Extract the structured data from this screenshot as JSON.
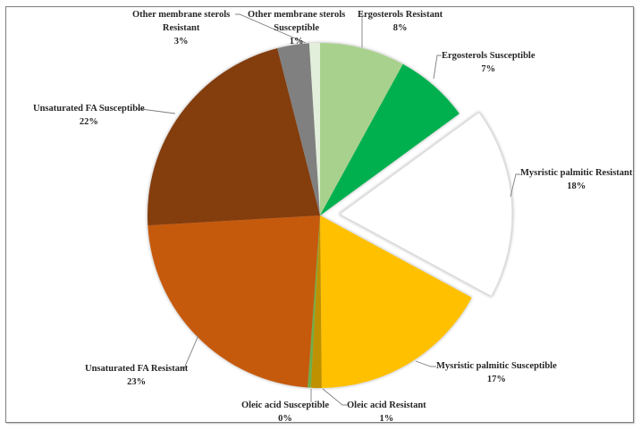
{
  "chart_data": {
    "type": "pie",
    "title": "",
    "start_angle_deg": 0,
    "direction": "clockwise",
    "exploded": [
      "Mysristic palmitic Resistant"
    ],
    "slices": [
      {
        "label": "Ergosterols Resistant",
        "value": 8,
        "display": "8%",
        "color": "#a9d18e"
      },
      {
        "label": "Ergosterols Susceptible",
        "value": 7,
        "display": "7%",
        "color": "#00b050"
      },
      {
        "label": "Mysristic palmitic Resistant",
        "value": 18,
        "display": "18%",
        "color": "#ffffff"
      },
      {
        "label": "Mysristic palmitic Susceptible",
        "value": 17,
        "display": "17%",
        "color": "#ffc000"
      },
      {
        "label": "Oleic acid Resistant",
        "value": 1,
        "display": "1%",
        "color": "#bf9000"
      },
      {
        "label": "Oleic acid Susceptible",
        "value": 0.3,
        "display": "0%",
        "color": "#70ad47"
      },
      {
        "label": "Unsaturated FA Resistant",
        "value": 23,
        "display": "23%",
        "color": "#c55a11"
      },
      {
        "label": "Unsaturated FA Susceptible",
        "value": 22,
        "display": "22%",
        "color": "#843c0c"
      },
      {
        "label": "Other membrane sterols Resistant",
        "value": 3,
        "display": "3%",
        "color": "#808080"
      },
      {
        "label": "Other membrane sterols Susceptible",
        "value": 1,
        "display": "1%",
        "color": "#e2efda"
      }
    ]
  },
  "labels": {
    "ergo_res": {
      "l1": "Ergosterols Resistant",
      "pct": "8%"
    },
    "ergo_sus": {
      "l1": "Ergosterols Susceptible",
      "pct": "7%"
    },
    "myr_res": {
      "l1": "Mysristic palmitic Resistant",
      "pct": "18%"
    },
    "myr_sus": {
      "l1": "Mysristic palmitic Susceptible",
      "pct": "17%"
    },
    "ole_res": {
      "l1": "Oleic acid Resistant",
      "pct": "1%"
    },
    "ole_sus": {
      "l1": "Oleic acid Susceptible",
      "pct": "0%"
    },
    "ufa_res": {
      "l1": "Unsaturated FA Resistant",
      "pct": "23%"
    },
    "ufa_sus": {
      "l1": "Unsaturated FA Susceptible",
      "pct": "22%"
    },
    "oms_res": {
      "l1": "Other membrane sterols",
      "l2": "Resistant",
      "pct": "3%"
    },
    "oms_sus": {
      "l1": "Other membrane sterols",
      "l2": "Susceptible",
      "pct": "1%"
    }
  }
}
